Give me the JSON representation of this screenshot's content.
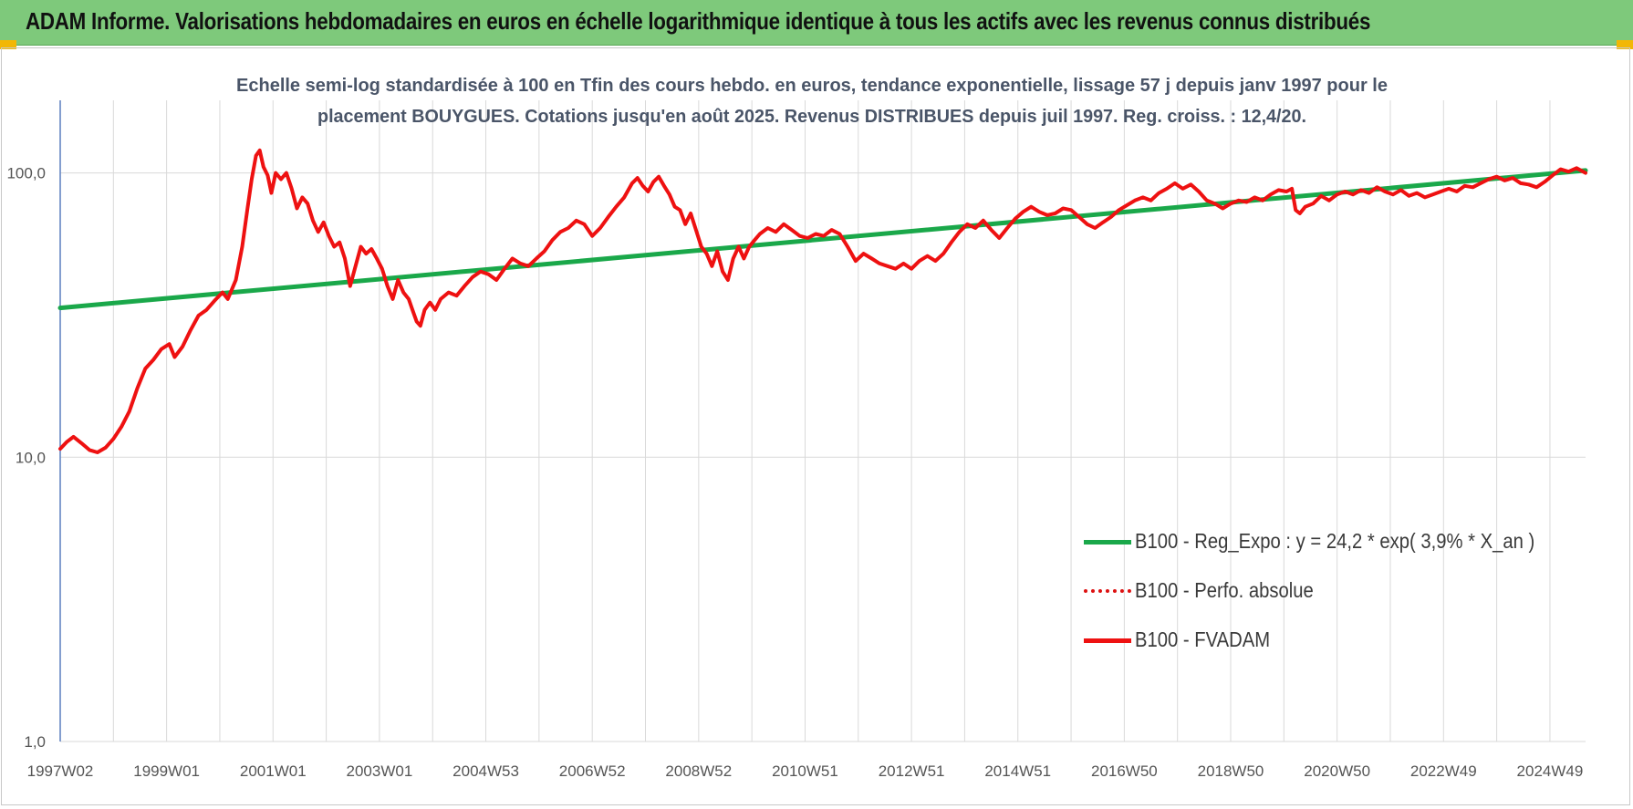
{
  "banner": {
    "title": "ADAM Informe. Valorisations hebdomadaires en euros en échelle logarithmique identique à tous les actifs avec les revenus connus distribués"
  },
  "colors": {
    "banner_bg": "#7ec97b",
    "regression": "#1aa84a",
    "fvadam": "#ee1111",
    "perfo": "#dd1111",
    "grid": "#d9d9d9",
    "axis": "#5b7fbf"
  },
  "chart_data": {
    "type": "line",
    "title_line1": "Echelle semi-log standardisée à 100 en Tfin des cours hebdo. en euros, tendance exponentielle, lissage 57 j depuis janv 1997 pour le",
    "title_line2": "placement BOUYGUES. Cotations jusqu'en août 2025. Revenus DISTRIBUES depuis juil 1997. Reg. croiss. : 12,4/20.",
    "y_scale": "log",
    "ylim": [
      1,
      180
    ],
    "y_ticks": [
      {
        "value": 1,
        "label": "1,0"
      },
      {
        "value": 10,
        "label": "10,0"
      },
      {
        "value": 100,
        "label": "100,0"
      }
    ],
    "x_range": [
      1997.0,
      2025.67
    ],
    "x_ticks": [
      {
        "value": 1997.0,
        "label": "1997W02"
      },
      {
        "value": 1999.0,
        "label": "1999W01"
      },
      {
        "value": 2001.0,
        "label": "2001W01"
      },
      {
        "value": 2003.0,
        "label": "2003W01"
      },
      {
        "value": 2005.0,
        "label": "2004W53"
      },
      {
        "value": 2007.0,
        "label": "2006W52"
      },
      {
        "value": 2009.0,
        "label": "2008W52"
      },
      {
        "value": 2011.0,
        "label": "2010W51"
      },
      {
        "value": 2013.0,
        "label": "2012W51"
      },
      {
        "value": 2015.0,
        "label": "2014W51"
      },
      {
        "value": 2017.0,
        "label": "2016W50"
      },
      {
        "value": 2019.0,
        "label": "2018W50"
      },
      {
        "value": 2021.0,
        "label": "2020W50"
      },
      {
        "value": 2023.0,
        "label": "2022W49"
      },
      {
        "value": 2025.0,
        "label": "2024W49"
      }
    ],
    "grid": true,
    "legend_position": "bottom-right",
    "series": [
      {
        "name": "B100 - Reg_Expo : y = 24,2 * exp( 3,9% *  X_an )",
        "style": "solid",
        "points": [
          [
            1997.0,
            33.5
          ],
          [
            2025.67,
            102
          ]
        ]
      },
      {
        "name": "B100 - Perfo. absolue",
        "style": "dotted",
        "points": []
      },
      {
        "name": "B100 - FVADAM",
        "style": "solid",
        "points": [
          [
            1997.0,
            10.7
          ],
          [
            1997.12,
            11.3
          ],
          [
            1997.25,
            11.8
          ],
          [
            1997.4,
            11.2
          ],
          [
            1997.55,
            10.6
          ],
          [
            1997.7,
            10.4
          ],
          [
            1997.85,
            10.8
          ],
          [
            1998.0,
            11.6
          ],
          [
            1998.15,
            12.8
          ],
          [
            1998.3,
            14.5
          ],
          [
            1998.45,
            17.5
          ],
          [
            1998.6,
            20.5
          ],
          [
            1998.75,
            22.0
          ],
          [
            1998.9,
            24.0
          ],
          [
            1999.05,
            25.0
          ],
          [
            1999.15,
            22.5
          ],
          [
            1999.3,
            24.5
          ],
          [
            1999.45,
            28.0
          ],
          [
            1999.6,
            31.5
          ],
          [
            1999.75,
            33.0
          ],
          [
            1999.9,
            35.5
          ],
          [
            2000.05,
            38.0
          ],
          [
            2000.15,
            36.0
          ],
          [
            2000.3,
            42.0
          ],
          [
            2000.42,
            55.0
          ],
          [
            2000.52,
            75.0
          ],
          [
            2000.6,
            95.0
          ],
          [
            2000.68,
            115.0
          ],
          [
            2000.75,
            120.0
          ],
          [
            2000.82,
            105.0
          ],
          [
            2000.9,
            98.0
          ],
          [
            2000.97,
            85.0
          ],
          [
            2001.05,
            100.0
          ],
          [
            2001.15,
            95.0
          ],
          [
            2001.25,
            100.0
          ],
          [
            2001.35,
            88.0
          ],
          [
            2001.45,
            75.0
          ],
          [
            2001.55,
            82.0
          ],
          [
            2001.65,
            78.0
          ],
          [
            2001.75,
            68.0
          ],
          [
            2001.85,
            62.0
          ],
          [
            2001.95,
            67.0
          ],
          [
            2002.05,
            60.0
          ],
          [
            2002.15,
            55.0
          ],
          [
            2002.25,
            57.0
          ],
          [
            2002.35,
            50.0
          ],
          [
            2002.45,
            40.0
          ],
          [
            2002.55,
            47.0
          ],
          [
            2002.65,
            55.0
          ],
          [
            2002.75,
            52.0
          ],
          [
            2002.85,
            54.0
          ],
          [
            2002.95,
            50.0
          ],
          [
            2003.05,
            46.0
          ],
          [
            2003.15,
            40.0
          ],
          [
            2003.25,
            36.0
          ],
          [
            2003.35,
            42.0
          ],
          [
            2003.45,
            38.0
          ],
          [
            2003.55,
            36.0
          ],
          [
            2003.62,
            33.0
          ],
          [
            2003.7,
            30.0
          ],
          [
            2003.77,
            29.0
          ],
          [
            2003.85,
            33.0
          ],
          [
            2003.95,
            35.0
          ],
          [
            2004.05,
            33.0
          ],
          [
            2004.15,
            36.0
          ],
          [
            2004.3,
            38.0
          ],
          [
            2004.45,
            37.0
          ],
          [
            2004.6,
            40.0
          ],
          [
            2004.75,
            43.0
          ],
          [
            2004.9,
            45.0
          ],
          [
            2005.05,
            44.0
          ],
          [
            2005.2,
            42.0
          ],
          [
            2005.35,
            46.0
          ],
          [
            2005.5,
            50.0
          ],
          [
            2005.65,
            48.0
          ],
          [
            2005.8,
            47.0
          ],
          [
            2005.95,
            50.0
          ],
          [
            2006.1,
            53.0
          ],
          [
            2006.25,
            58.0
          ],
          [
            2006.4,
            62.0
          ],
          [
            2006.55,
            64.0
          ],
          [
            2006.7,
            68.0
          ],
          [
            2006.85,
            66.0
          ],
          [
            2007.0,
            60.0
          ],
          [
            2007.15,
            64.0
          ],
          [
            2007.3,
            70.0
          ],
          [
            2007.45,
            76.0
          ],
          [
            2007.6,
            82.0
          ],
          [
            2007.75,
            92.0
          ],
          [
            2007.85,
            96.0
          ],
          [
            2007.95,
            90.0
          ],
          [
            2008.05,
            86.0
          ],
          [
            2008.15,
            93.0
          ],
          [
            2008.25,
            97.0
          ],
          [
            2008.35,
            90.0
          ],
          [
            2008.45,
            84.0
          ],
          [
            2008.55,
            76.0
          ],
          [
            2008.65,
            74.0
          ],
          [
            2008.75,
            66.0
          ],
          [
            2008.85,
            72.0
          ],
          [
            2008.95,
            63.0
          ],
          [
            2009.05,
            55.0
          ],
          [
            2009.15,
            52.0
          ],
          [
            2009.25,
            47.0
          ],
          [
            2009.35,
            53.0
          ],
          [
            2009.45,
            45.0
          ],
          [
            2009.55,
            42.0
          ],
          [
            2009.65,
            50.0
          ],
          [
            2009.75,
            55.0
          ],
          [
            2009.85,
            50.0
          ],
          [
            2009.95,
            55.0
          ],
          [
            2010.05,
            58.0
          ],
          [
            2010.15,
            61.0
          ],
          [
            2010.3,
            64.0
          ],
          [
            2010.45,
            62.0
          ],
          [
            2010.6,
            66.0
          ],
          [
            2010.75,
            63.0
          ],
          [
            2010.9,
            60.0
          ],
          [
            2011.05,
            59.0
          ],
          [
            2011.2,
            61.0
          ],
          [
            2011.35,
            60.0
          ],
          [
            2011.5,
            63.0
          ],
          [
            2011.65,
            61.0
          ],
          [
            2011.8,
            55.0
          ],
          [
            2011.95,
            49.0
          ],
          [
            2012.1,
            52.0
          ],
          [
            2012.25,
            50.0
          ],
          [
            2012.4,
            48.0
          ],
          [
            2012.55,
            47.0
          ],
          [
            2012.7,
            46.0
          ],
          [
            2012.85,
            48.0
          ],
          [
            2013.0,
            46.0
          ],
          [
            2013.15,
            49.0
          ],
          [
            2013.3,
            51.0
          ],
          [
            2013.45,
            49.0
          ],
          [
            2013.6,
            52.0
          ],
          [
            2013.75,
            57.0
          ],
          [
            2013.9,
            62.0
          ],
          [
            2014.05,
            66.0
          ],
          [
            2014.2,
            64.0
          ],
          [
            2014.35,
            68.0
          ],
          [
            2014.5,
            63.0
          ],
          [
            2014.65,
            59.0
          ],
          [
            2014.8,
            64.0
          ],
          [
            2014.95,
            69.0
          ],
          [
            2015.1,
            73.0
          ],
          [
            2015.25,
            76.0
          ],
          [
            2015.4,
            73.0
          ],
          [
            2015.55,
            71.0
          ],
          [
            2015.7,
            72.0
          ],
          [
            2015.85,
            75.0
          ],
          [
            2016.0,
            74.0
          ],
          [
            2016.15,
            70.0
          ],
          [
            2016.3,
            66.0
          ],
          [
            2016.45,
            64.0
          ],
          [
            2016.6,
            67.0
          ],
          [
            2016.75,
            70.0
          ],
          [
            2016.9,
            74.0
          ],
          [
            2017.05,
            77.0
          ],
          [
            2017.2,
            80.0
          ],
          [
            2017.35,
            82.0
          ],
          [
            2017.5,
            80.0
          ],
          [
            2017.65,
            85.0
          ],
          [
            2017.8,
            88.0
          ],
          [
            2017.95,
            92.0
          ],
          [
            2018.1,
            88.0
          ],
          [
            2018.25,
            91.0
          ],
          [
            2018.4,
            86.0
          ],
          [
            2018.55,
            80.0
          ],
          [
            2018.7,
            78.0
          ],
          [
            2018.85,
            75.0
          ],
          [
            2019.0,
            78.0
          ],
          [
            2019.15,
            80.0
          ],
          [
            2019.3,
            79.0
          ],
          [
            2019.45,
            82.0
          ],
          [
            2019.6,
            80.0
          ],
          [
            2019.75,
            84.0
          ],
          [
            2019.9,
            87.0
          ],
          [
            2020.05,
            86.0
          ],
          [
            2020.15,
            88.0
          ],
          [
            2020.22,
            74.0
          ],
          [
            2020.3,
            72.0
          ],
          [
            2020.4,
            76.0
          ],
          [
            2020.55,
            78.0
          ],
          [
            2020.7,
            83.0
          ],
          [
            2020.85,
            80.0
          ],
          [
            2021.0,
            84.0
          ],
          [
            2021.15,
            86.0
          ],
          [
            2021.3,
            84.0
          ],
          [
            2021.45,
            87.0
          ],
          [
            2021.6,
            85.0
          ],
          [
            2021.75,
            89.0
          ],
          [
            2021.9,
            86.0
          ],
          [
            2022.05,
            84.0
          ],
          [
            2022.2,
            87.0
          ],
          [
            2022.35,
            83.0
          ],
          [
            2022.5,
            85.0
          ],
          [
            2022.65,
            82.0
          ],
          [
            2022.8,
            84.0
          ],
          [
            2022.95,
            86.0
          ],
          [
            2023.1,
            88.0
          ],
          [
            2023.25,
            86.0
          ],
          [
            2023.4,
            90.0
          ],
          [
            2023.55,
            89.0
          ],
          [
            2023.7,
            92.0
          ],
          [
            2023.85,
            95.0
          ],
          [
            2024.0,
            97.0
          ],
          [
            2024.15,
            94.0
          ],
          [
            2024.3,
            96.0
          ],
          [
            2024.45,
            92.0
          ],
          [
            2024.6,
            91.0
          ],
          [
            2024.75,
            89.0
          ],
          [
            2024.9,
            93.0
          ],
          [
            2025.05,
            98.0
          ],
          [
            2025.2,
            103.0
          ],
          [
            2025.35,
            101.0
          ],
          [
            2025.5,
            104.0
          ],
          [
            2025.67,
            100.0
          ]
        ]
      }
    ]
  }
}
